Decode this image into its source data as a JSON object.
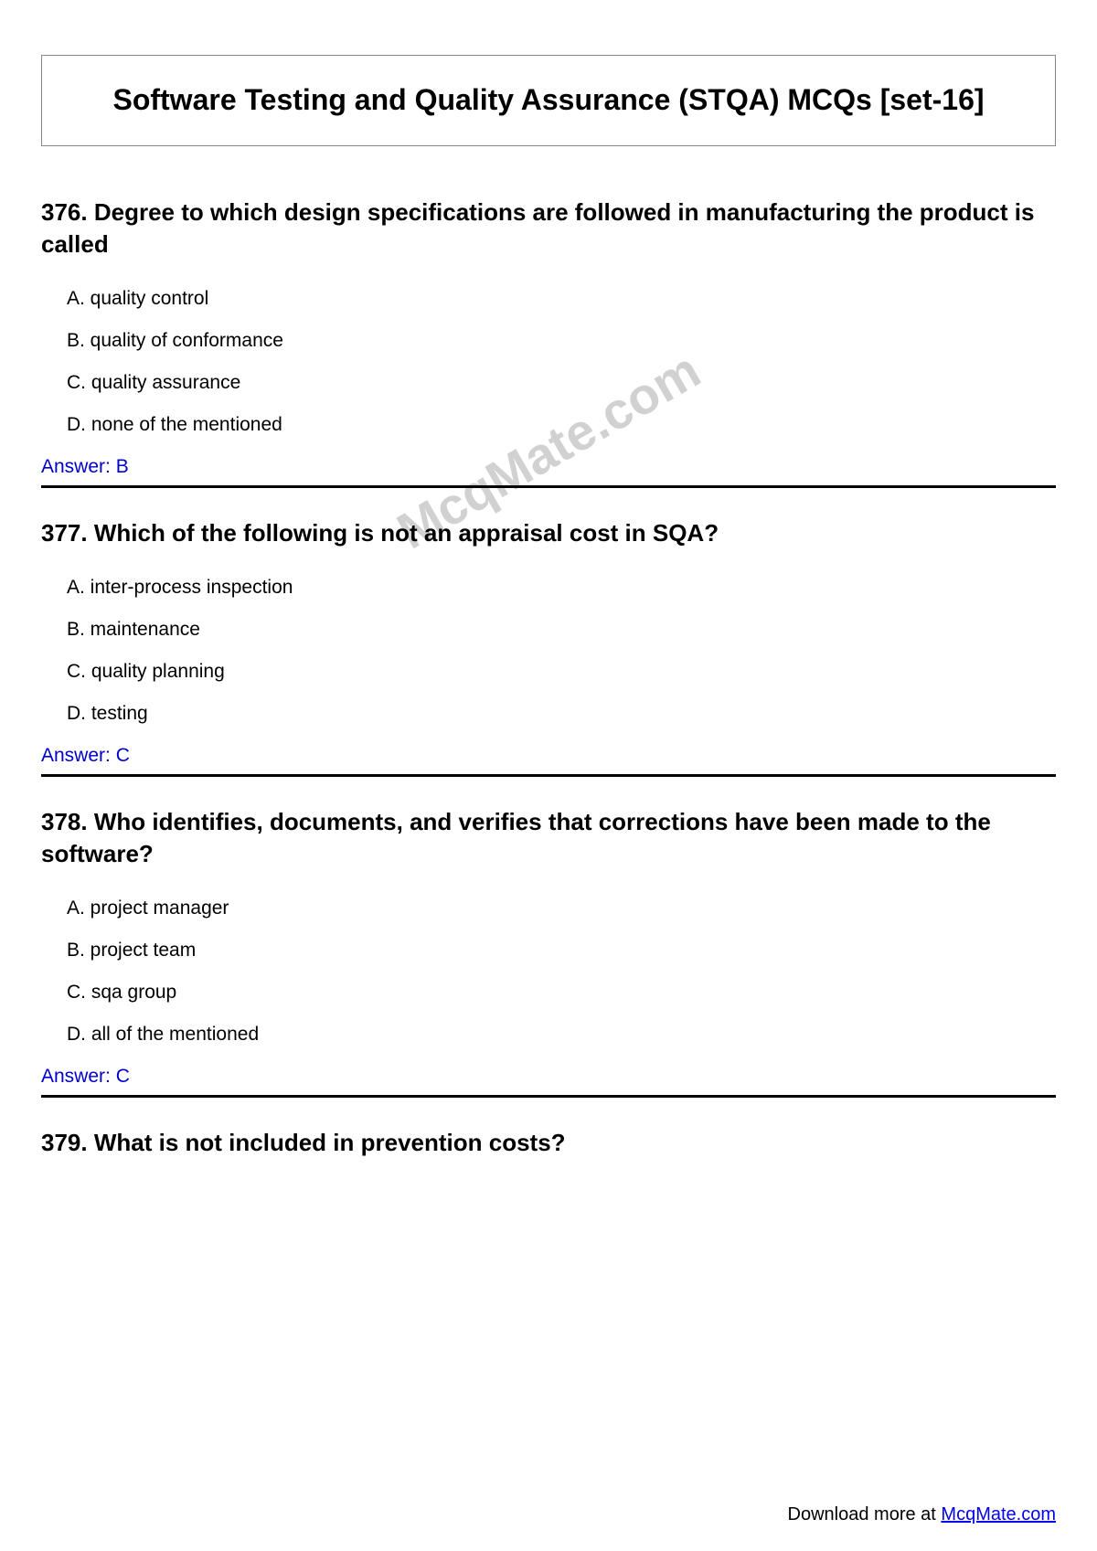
{
  "title": "Software Testing and Quality Assurance (STQA) MCQs [set-16]",
  "watermark": "McqMate.com",
  "answer_prefix": "Answer: ",
  "questions": [
    {
      "number": "376.",
      "text": "Degree to which design specifications are followed in manufacturing the product is called",
      "options": {
        "A": "A. quality control",
        "B": "B. quality of conformance",
        "C": "C. quality assurance",
        "D": "D. none of the mentioned"
      },
      "answer": "B"
    },
    {
      "number": "377.",
      "text": "Which of the following is not an appraisal cost in SQA?",
      "options": {
        "A": "A. inter-process inspection",
        "B": "B. maintenance",
        "C": "C. quality planning",
        "D": "D. testing"
      },
      "answer": "C"
    },
    {
      "number": "378.",
      "text": "Who identifies, documents, and verifies that corrections have been made to the software?",
      "options": {
        "A": "A. project manager",
        "B": "B. project team",
        "C": "C. sqa group",
        "D": "D. all of the mentioned"
      },
      "answer": "C"
    },
    {
      "number": "379.",
      "text": "What is not included in prevention costs?",
      "options": {},
      "answer": null
    }
  ],
  "footer": {
    "text": "Download more at ",
    "link_text": "McqMate.com"
  }
}
